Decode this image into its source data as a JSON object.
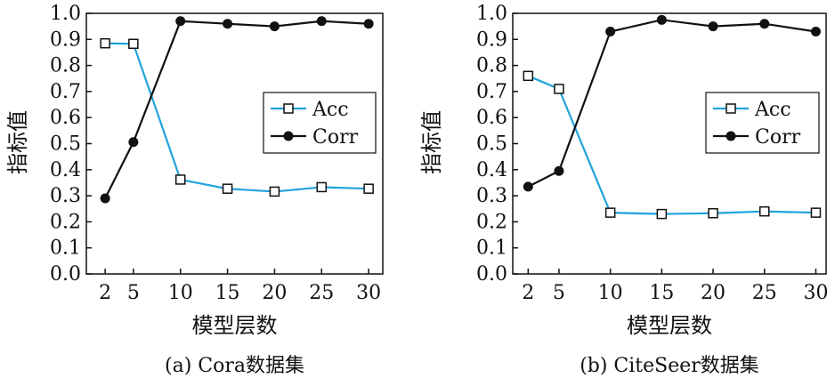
{
  "colors": {
    "acc": "#1fa3da",
    "corr": "#111111"
  },
  "chart_data": [
    {
      "type": "line",
      "caption": "(a) Cora数据集",
      "xlabel": "模型层数",
      "ylabel": "指标值",
      "categories": [
        "2",
        "5",
        "10",
        "15",
        "20",
        "25",
        "30"
      ],
      "x": [
        2,
        5,
        10,
        15,
        20,
        25,
        30
      ],
      "ylim": [
        0.0,
        1.0
      ],
      "yticks": [
        "0.0",
        "0.1",
        "0.2",
        "0.3",
        "0.4",
        "0.5",
        "0.6",
        "0.7",
        "0.8",
        "0.9",
        "1.0"
      ],
      "legend_position": "right",
      "series": [
        {
          "name": "Acc",
          "marker": "open-square",
          "values": [
            0.885,
            0.883,
            0.362,
            0.327,
            0.316,
            0.333,
            0.327
          ]
        },
        {
          "name": "Corr",
          "marker": "filled-circle",
          "values": [
            0.29,
            0.506,
            0.97,
            0.96,
            0.95,
            0.97,
            0.96
          ]
        }
      ]
    },
    {
      "type": "line",
      "caption": "(b) CiteSeer数据集",
      "xlabel": "模型层数",
      "ylabel": "指标值",
      "categories": [
        "2",
        "5",
        "10",
        "15",
        "20",
        "25",
        "30"
      ],
      "x": [
        2,
        5,
        10,
        15,
        20,
        25,
        30
      ],
      "ylim": [
        0.0,
        1.0
      ],
      "yticks": [
        "0.0",
        "0.1",
        "0.2",
        "0.3",
        "0.4",
        "0.5",
        "0.6",
        "0.7",
        "0.8",
        "0.9",
        "1.0"
      ],
      "legend_position": "right",
      "series": [
        {
          "name": "Acc",
          "marker": "open-square",
          "values": [
            0.76,
            0.71,
            0.235,
            0.23,
            0.233,
            0.24,
            0.235
          ]
        },
        {
          "name": "Corr",
          "marker": "filled-circle",
          "values": [
            0.335,
            0.395,
            0.93,
            0.975,
            0.95,
            0.96,
            0.93
          ]
        }
      ]
    }
  ]
}
